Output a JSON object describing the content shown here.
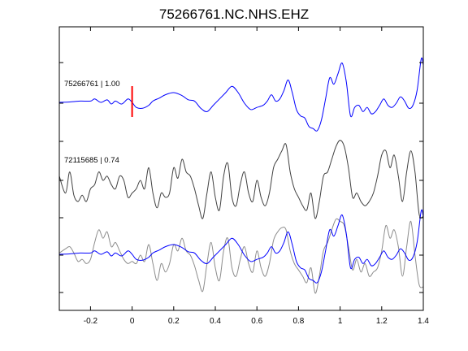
{
  "chart_data": {
    "type": "line",
    "title": "75266761.NC.NHS.EHZ",
    "xlabel": "",
    "ylabel": "",
    "xlim": [
      -0.35,
      1.4
    ],
    "xticks": [
      -0.2,
      0,
      0.2,
      0.4,
      0.6,
      0.8,
      1,
      1.2,
      1.4
    ],
    "xtick_labels": [
      "-0.2",
      "0",
      "0.2",
      "0.4",
      "0.6",
      "0.8",
      "1",
      "1.2",
      "1.4"
    ],
    "grid": false,
    "pick_time": 0,
    "colors": {
      "blue": "#0000ff",
      "dark": "#404040",
      "gray": "#8c8c8c",
      "pick": "#ff0000"
    },
    "traces": [
      {
        "label": "75266761 | 1.00",
        "color": "blue",
        "x": [
          -0.35,
          -0.3,
          -0.25,
          -0.2,
          -0.18,
          -0.15,
          -0.12,
          -0.1,
          -0.08,
          -0.05,
          -0.02,
          0,
          0.02,
          0.05,
          0.08,
          0.1,
          0.13,
          0.16,
          0.2,
          0.24,
          0.27,
          0.3,
          0.33,
          0.36,
          0.39,
          0.42,
          0.45,
          0.48,
          0.51,
          0.54,
          0.57,
          0.6,
          0.63,
          0.65,
          0.67,
          0.69,
          0.71,
          0.73,
          0.75,
          0.77,
          0.79,
          0.81,
          0.83,
          0.85,
          0.87,
          0.89,
          0.91,
          0.93,
          0.95,
          0.97,
          0.99,
          1.01,
          1.03,
          1.05,
          1.07,
          1.09,
          1.11,
          1.13,
          1.15,
          1.17,
          1.19,
          1.21,
          1.23,
          1.25,
          1.27,
          1.29,
          1.31,
          1.33,
          1.35,
          1.37,
          1.39,
          1.4
        ],
        "y": [
          0.02,
          0.03,
          0.05,
          0.05,
          0.1,
          0.02,
          0.08,
          -0.02,
          0.05,
          -0.02,
          0.1,
          0.02,
          -0.1,
          -0.12,
          -0.05,
          0.05,
          0.12,
          0.2,
          0.25,
          0.18,
          0.08,
          0.05,
          -0.12,
          -0.2,
          -0.05,
          0.1,
          0.25,
          0.4,
          0.25,
          0.0,
          -0.15,
          -0.1,
          -0.05,
          0.05,
          0.2,
          0.05,
          0.1,
          0.3,
          0.55,
          0.25,
          -0.15,
          -0.3,
          -0.35,
          -0.55,
          -0.6,
          -0.65,
          -0.4,
          0.1,
          0.6,
          0.45,
          0.7,
          0.95,
          0.5,
          -0.3,
          -0.1,
          -0.05,
          -0.2,
          -0.1,
          -0.25,
          -0.2,
          -0.05,
          0.1,
          -0.05,
          -0.1,
          0.0,
          0.15,
          0.05,
          -0.12,
          -0.05,
          0.3,
          1.05,
          0.9
        ]
      },
      {
        "label": "72115685 | 0.74",
        "color": "dark",
        "x": [
          -0.35,
          -0.32,
          -0.3,
          -0.28,
          -0.26,
          -0.24,
          -0.22,
          -0.2,
          -0.18,
          -0.16,
          -0.14,
          -0.12,
          -0.1,
          -0.08,
          -0.06,
          -0.04,
          -0.02,
          0.0,
          0.02,
          0.04,
          0.06,
          0.08,
          0.1,
          0.12,
          0.14,
          0.16,
          0.18,
          0.2,
          0.22,
          0.24,
          0.26,
          0.28,
          0.3,
          0.32,
          0.34,
          0.36,
          0.38,
          0.4,
          0.42,
          0.44,
          0.46,
          0.48,
          0.5,
          0.52,
          0.54,
          0.56,
          0.58,
          0.6,
          0.62,
          0.64,
          0.66,
          0.68,
          0.7,
          0.72,
          0.74,
          0.76,
          0.78,
          0.8,
          0.82,
          0.84,
          0.86,
          0.88,
          0.9,
          0.92,
          0.94,
          0.96,
          0.98,
          1.0,
          1.02,
          1.04,
          1.06,
          1.08,
          1.1,
          1.12,
          1.14,
          1.16,
          1.18,
          1.2,
          1.22,
          1.24,
          1.26,
          1.28,
          1.3,
          1.32,
          1.34,
          1.36,
          1.38,
          1.4
        ],
        "y": [
          0.1,
          -0.3,
          0.2,
          -0.35,
          -0.5,
          -0.35,
          -0.5,
          -0.2,
          -0.1,
          0.2,
          0.0,
          0.1,
          -0.1,
          -0.2,
          0.1,
          0.0,
          -0.4,
          -0.3,
          -0.2,
          0.0,
          -0.2,
          0.3,
          -0.3,
          -0.65,
          -0.3,
          -0.4,
          -0.3,
          0.3,
          0.05,
          0.5,
          0.2,
          0.1,
          -0.2,
          -0.6,
          -0.9,
          -0.3,
          0.2,
          -0.4,
          -0.7,
          0.1,
          0.4,
          -0.4,
          -0.6,
          -0.1,
          0.2,
          -0.3,
          -0.5,
          0.0,
          -0.4,
          -0.6,
          -0.3,
          0.3,
          0.5,
          0.7,
          0.85,
          0.2,
          -0.2,
          -0.4,
          -0.6,
          -0.7,
          -0.3,
          -0.9,
          -0.5,
          0.1,
          0.2,
          0.5,
          0.8,
          0.95,
          0.8,
          0.3,
          -0.4,
          -0.3,
          -0.5,
          -0.6,
          -0.5,
          -0.3,
          0.1,
          0.6,
          0.7,
          0.3,
          0.6,
          0.1,
          -0.5,
          0.2,
          0.7,
          0.2,
          -0.8,
          -0.85
        ]
      },
      {
        "label": "",
        "color": "gray",
        "x": [
          -0.35,
          -0.32,
          -0.3,
          -0.28,
          -0.26,
          -0.24,
          -0.22,
          -0.2,
          -0.18,
          -0.16,
          -0.14,
          -0.12,
          -0.1,
          -0.08,
          -0.06,
          -0.04,
          -0.02,
          0.0,
          0.02,
          0.04,
          0.06,
          0.08,
          0.1,
          0.12,
          0.14,
          0.16,
          0.18,
          0.2,
          0.22,
          0.24,
          0.26,
          0.28,
          0.3,
          0.32,
          0.34,
          0.36,
          0.38,
          0.4,
          0.42,
          0.44,
          0.46,
          0.48,
          0.5,
          0.52,
          0.54,
          0.56,
          0.58,
          0.6,
          0.62,
          0.64,
          0.66,
          0.68,
          0.7,
          0.72,
          0.74,
          0.76,
          0.78,
          0.8,
          0.82,
          0.84,
          0.86,
          0.88,
          0.9,
          0.92,
          0.94,
          0.96,
          0.98,
          1.0,
          1.02,
          1.04,
          1.06,
          1.08,
          1.1,
          1.12,
          1.14,
          1.16,
          1.18,
          1.2,
          1.22,
          1.24,
          1.26,
          1.28,
          1.3,
          1.32,
          1.34,
          1.36,
          1.38,
          1.4
        ],
        "y": [
          0.05,
          0.15,
          0.2,
          0.05,
          -0.15,
          -0.1,
          -0.2,
          -0.1,
          0.3,
          0.6,
          0.4,
          0.55,
          0.2,
          0.3,
          0.1,
          -0.1,
          -0.2,
          -0.15,
          -0.2,
          0.0,
          -0.15,
          0.25,
          -0.2,
          -0.6,
          -0.2,
          -0.4,
          -0.2,
          0.25,
          0.1,
          0.4,
          0.1,
          0.0,
          -0.25,
          -0.6,
          -0.85,
          -0.2,
          0.3,
          -0.3,
          -0.6,
          0.1,
          0.4,
          -0.3,
          -0.5,
          -0.1,
          0.2,
          -0.2,
          -0.4,
          0.1,
          -0.3,
          -0.5,
          -0.2,
          0.35,
          0.55,
          0.65,
          0.6,
          0.1,
          -0.2,
          -0.35,
          -0.5,
          -0.65,
          -0.3,
          -0.9,
          -0.5,
          0.1,
          0.3,
          0.6,
          0.85,
          0.8,
          0.7,
          0.2,
          -0.35,
          -0.1,
          -0.4,
          -0.2,
          -0.5,
          -0.4,
          -0.3,
          0.1,
          0.7,
          0.4,
          0.6,
          0.2,
          -0.5,
          0.2,
          0.8,
          0.0,
          -0.7,
          -0.75
        ]
      },
      {
        "label": "",
        "color": "blue",
        "x": [
          -0.35,
          -0.3,
          -0.25,
          -0.2,
          -0.18,
          -0.15,
          -0.12,
          -0.1,
          -0.08,
          -0.05,
          -0.02,
          0,
          0.02,
          0.05,
          0.08,
          0.1,
          0.13,
          0.16,
          0.2,
          0.24,
          0.27,
          0.3,
          0.33,
          0.36,
          0.39,
          0.42,
          0.45,
          0.48,
          0.51,
          0.54,
          0.57,
          0.6,
          0.63,
          0.65,
          0.67,
          0.69,
          0.71,
          0.73,
          0.75,
          0.77,
          0.79,
          0.81,
          0.83,
          0.85,
          0.87,
          0.89,
          0.91,
          0.93,
          0.95,
          0.97,
          0.99,
          1.01,
          1.03,
          1.05,
          1.07,
          1.09,
          1.11,
          1.13,
          1.15,
          1.17,
          1.19,
          1.21,
          1.23,
          1.25,
          1.27,
          1.29,
          1.31,
          1.33,
          1.35,
          1.37,
          1.39,
          1.4
        ],
        "y": [
          0.02,
          0.03,
          0.05,
          0.05,
          0.1,
          0.02,
          0.08,
          -0.02,
          0.05,
          -0.02,
          0.1,
          0.02,
          -0.1,
          -0.12,
          -0.05,
          0.05,
          0.12,
          0.2,
          0.25,
          0.18,
          0.08,
          0.05,
          -0.12,
          -0.2,
          -0.05,
          0.1,
          0.25,
          0.4,
          0.25,
          0.0,
          -0.15,
          -0.1,
          -0.05,
          0.05,
          0.2,
          0.05,
          0.1,
          0.3,
          0.55,
          0.25,
          -0.15,
          -0.3,
          -0.35,
          -0.55,
          -0.6,
          -0.65,
          -0.4,
          0.1,
          0.6,
          0.45,
          0.7,
          0.95,
          0.5,
          -0.3,
          -0.1,
          -0.05,
          -0.2,
          -0.1,
          -0.25,
          -0.2,
          -0.05,
          0.1,
          -0.05,
          -0.1,
          0.0,
          0.15,
          0.05,
          -0.12,
          -0.05,
          0.3,
          1.05,
          0.9
        ]
      }
    ]
  }
}
